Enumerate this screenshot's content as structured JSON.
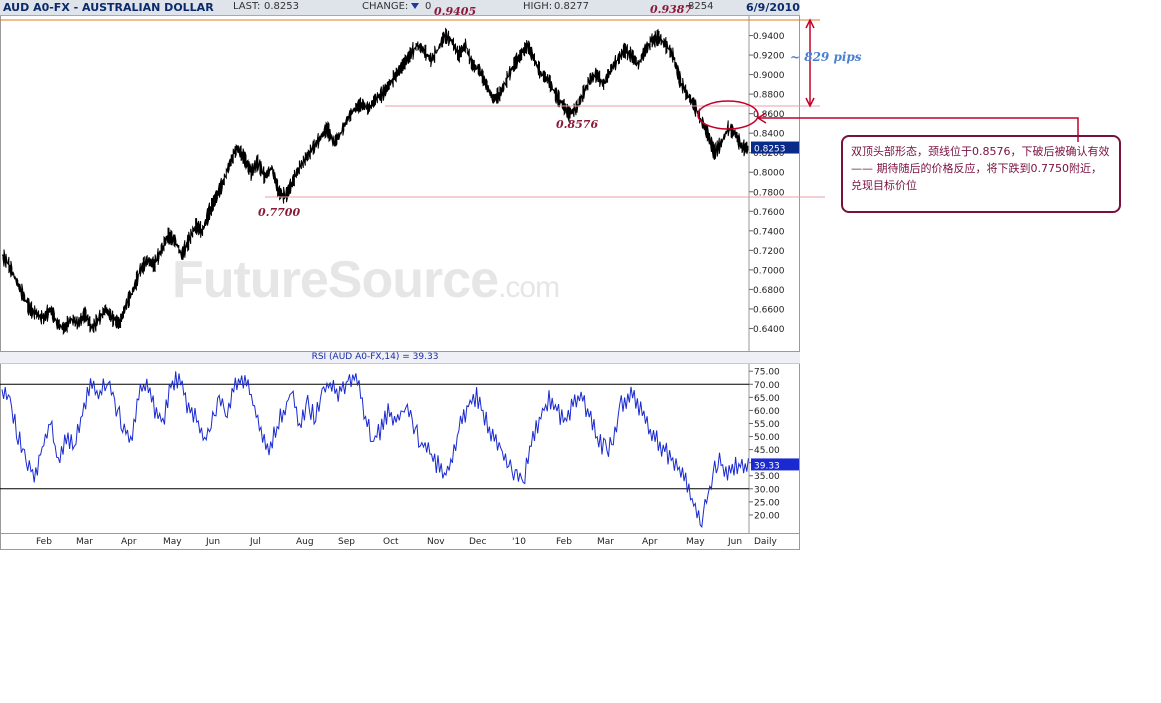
{
  "header": {
    "symbol": "AUD A0-FX - AUSTRALIAN DOLLAR",
    "last_label": "LAST:",
    "last_value": "0.8253",
    "change_label": "CHANGE:",
    "change_icon": "down-triangle-icon",
    "change_value": "0",
    "high_label": "HIGH:",
    "high_value": "0.8277",
    "low_fragment": "8254",
    "date": "6/9/2010"
  },
  "watermark": {
    "main": "FutureSource",
    "suffix": ".com"
  },
  "rsi": {
    "title": "RSI (AUD A0-FX,14) = 39.33",
    "current": "39.33"
  },
  "annotations": {
    "peak1": "0.9405",
    "peak2": "0.9387",
    "neckline": "0.8576",
    "target": "0.7700",
    "pips": "~ 829  pips",
    "note_line1": "双顶头部形态，颈线位于0.8576，下破后被确认有效",
    "note_line2": "—— 期待随后的价格反应，将下跌到0.7750附近，兑现目标价位"
  },
  "colors": {
    "price": "#000000",
    "rsi": "#1a2ad0",
    "guide": "#e8a0a8",
    "top_line": "#e07a20",
    "annot": "#c4002a",
    "note_border": "#7a1040",
    "last_badge": "#0a2a8a"
  },
  "chart_data": [
    {
      "type": "line",
      "title": "AUD A0-FX - AUSTRALIAN DOLLAR",
      "x_ticks": [
        "Feb",
        "Mar",
        "Apr",
        "May",
        "Jun",
        "Jul",
        "Aug",
        "Sep",
        "Oct",
        "Nov",
        "Dec",
        "'10",
        "Feb",
        "Mar",
        "Apr",
        "May",
        "Jun",
        "Daily"
      ],
      "y_ticks": [
        "0.9400",
        "0.9200",
        "0.9000",
        "0.8800",
        "0.8600",
        "0.8400",
        "0.8200",
        "0.8000",
        "0.7800",
        "0.7600",
        "0.7400",
        "0.7200",
        "0.7000",
        "0.6800",
        "0.6600",
        "0.6400"
      ],
      "ylim": [
        0.62,
        0.96
      ],
      "last": 0.8253,
      "series": [
        {
          "values": [
            0.715,
            0.705,
            0.69,
            0.675,
            0.66,
            0.655,
            0.65,
            0.66,
            0.645,
            0.64,
            0.65,
            0.645,
            0.655,
            0.64,
            0.65,
            0.66,
            0.65,
            0.645,
            0.665,
            0.68,
            0.7,
            0.71,
            0.705,
            0.72,
            0.735,
            0.73,
            0.715,
            0.73,
            0.745,
            0.74,
            0.76,
            0.775,
            0.79,
            0.81,
            0.825,
            0.815,
            0.8,
            0.81,
            0.795,
            0.805,
            0.78,
            0.775,
            0.79,
            0.805,
            0.815,
            0.825,
            0.835,
            0.845,
            0.83,
            0.84,
            0.855,
            0.865,
            0.87,
            0.865,
            0.875,
            0.88,
            0.89,
            0.9,
            0.91,
            0.92,
            0.93,
            0.925,
            0.915,
            0.925,
            0.94,
            0.935,
            0.92,
            0.93,
            0.91,
            0.905,
            0.89,
            0.875,
            0.88,
            0.895,
            0.91,
            0.92,
            0.93,
            0.915,
            0.9,
            0.895,
            0.88,
            0.87,
            0.86,
            0.865,
            0.88,
            0.895,
            0.9,
            0.89,
            0.905,
            0.915,
            0.925,
            0.92,
            0.91,
            0.925,
            0.935,
            0.938,
            0.93,
            0.92,
            0.895,
            0.88,
            0.87,
            0.855,
            0.84,
            0.82,
            0.83,
            0.845,
            0.84,
            0.825
          ]
        }
      ]
    },
    {
      "type": "line",
      "title": "RSI (AUD A0-FX,14) = 39.33",
      "y_ticks": [
        "75.00",
        "70.00",
        "65.00",
        "60.00",
        "55.00",
        "50.00",
        "45.00",
        "40.00",
        "35.00",
        "30.00",
        "25.00",
        "20.00"
      ],
      "ylim": [
        15,
        77
      ],
      "reference_lines": [
        70,
        30
      ],
      "last": 39.33,
      "series": [
        {
          "values": [
            68,
            65,
            50,
            40,
            35,
            45,
            55,
            40,
            50,
            45,
            60,
            70,
            65,
            72,
            62,
            55,
            48,
            65,
            72,
            60,
            55,
            70,
            73,
            62,
            58,
            48,
            55,
            65,
            60,
            70,
            72,
            66,
            55,
            45,
            52,
            60,
            67,
            55,
            62,
            58,
            67,
            70,
            66,
            72,
            74,
            60,
            48,
            52,
            60,
            56,
            62,
            55,
            48,
            45,
            40,
            35,
            42,
            55,
            62,
            66,
            58,
            50,
            45,
            40,
            34,
            36,
            50,
            58,
            64,
            60,
            55,
            62,
            66,
            58,
            50,
            45,
            48,
            62,
            66,
            63,
            56,
            50,
            46,
            42,
            38,
            33,
            24,
            18,
            30,
            42,
            35,
            38,
            39.33
          ]
        }
      ]
    }
  ]
}
